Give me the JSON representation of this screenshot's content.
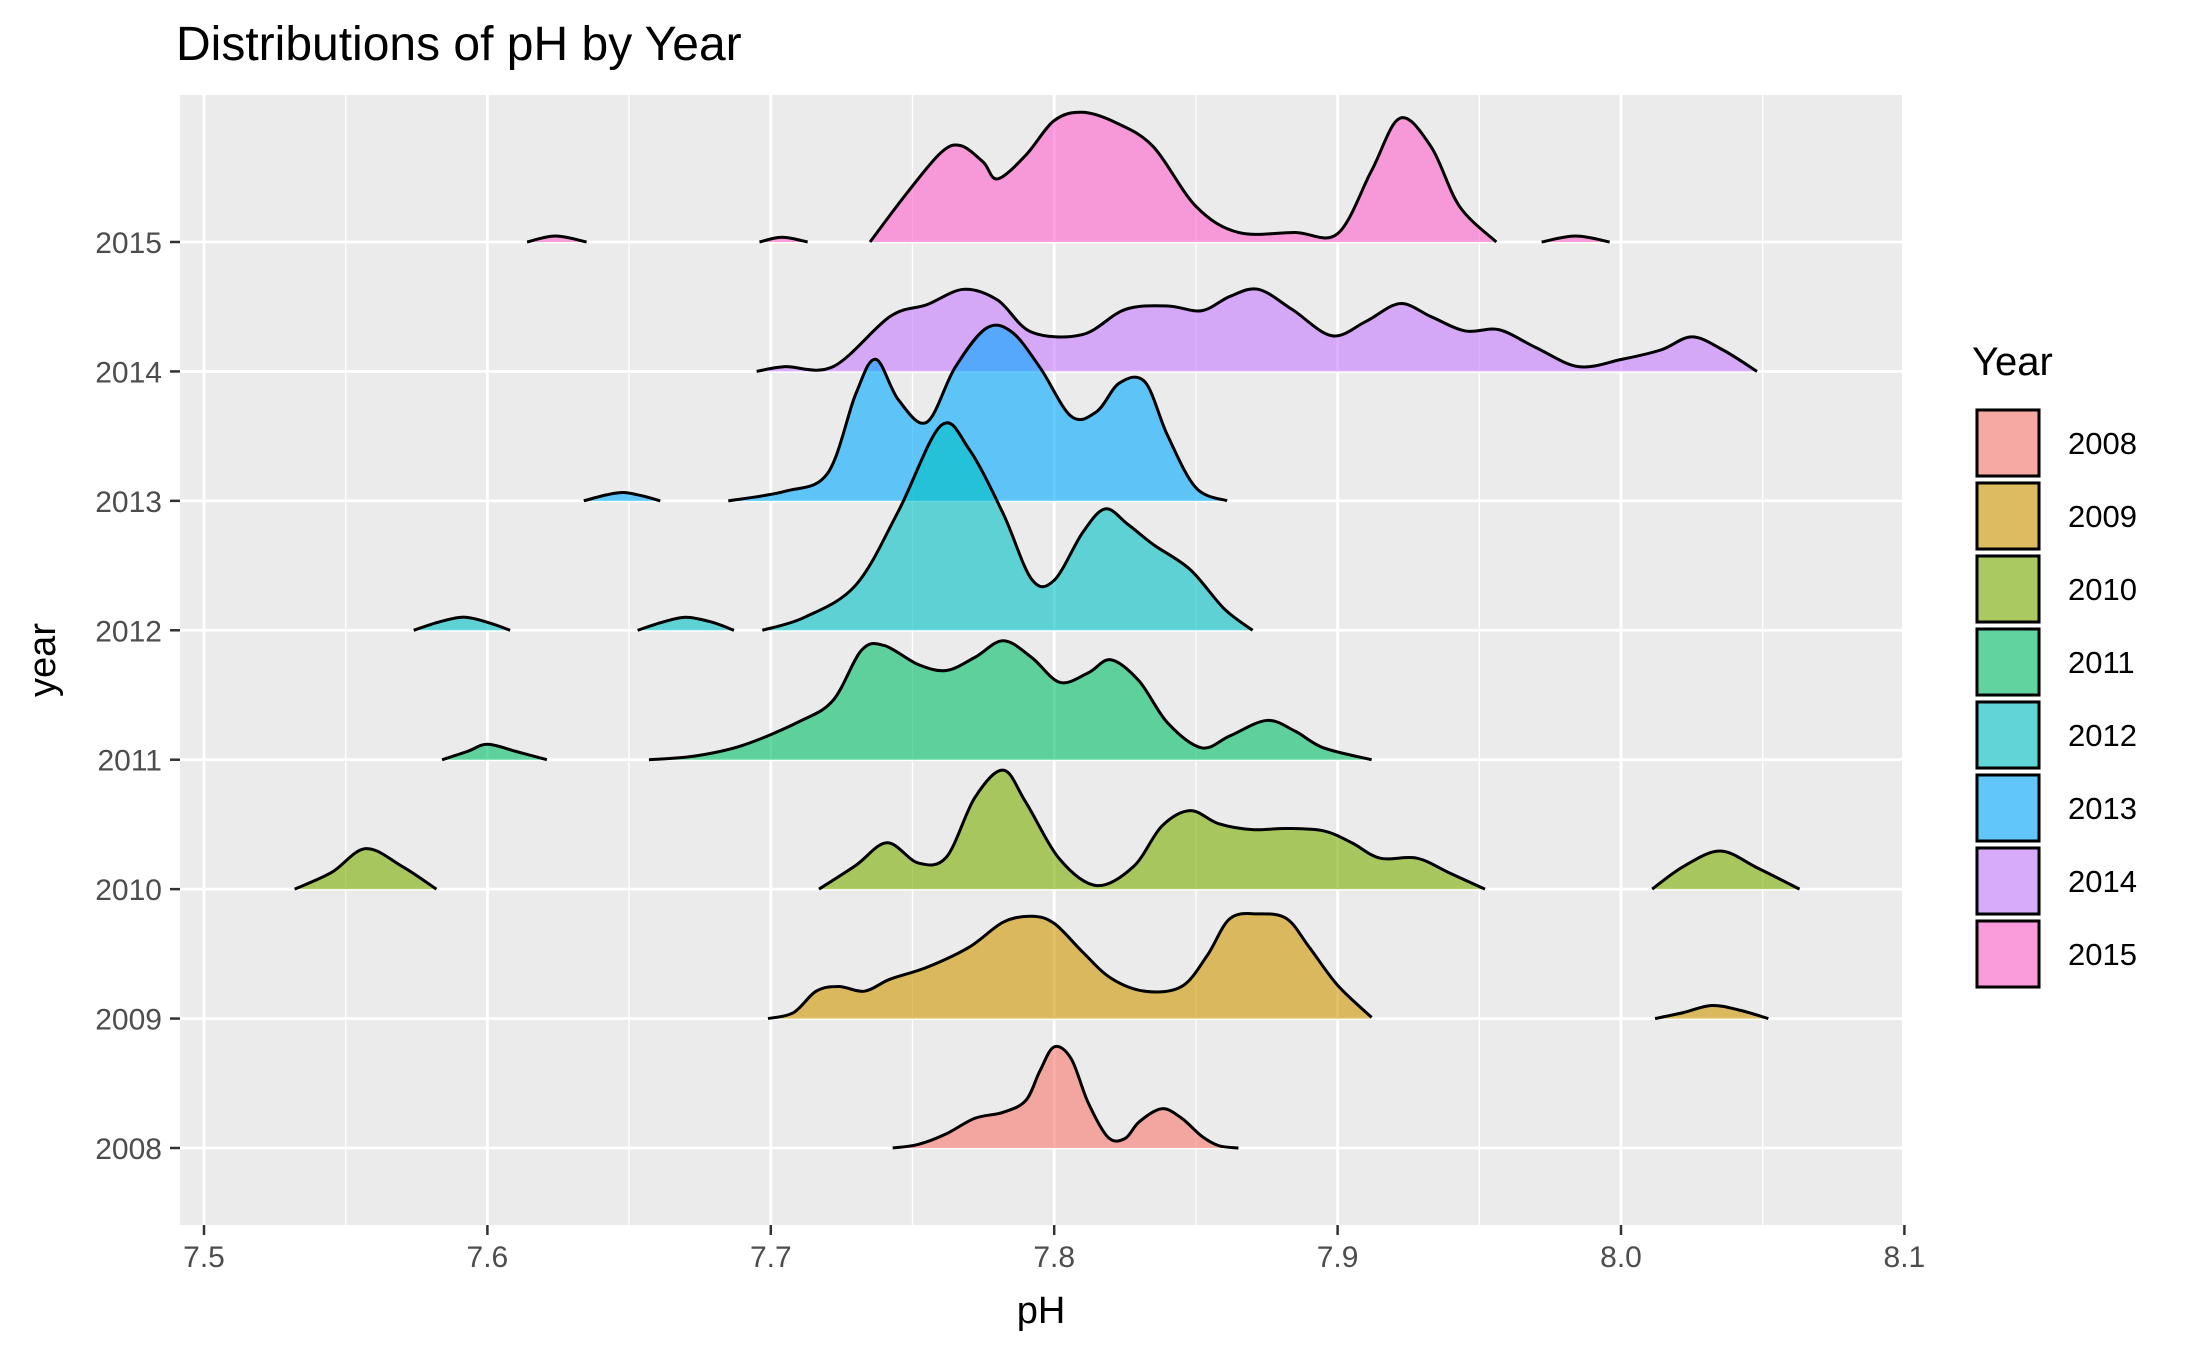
{
  "chart_data": {
    "type": "ridgeline",
    "title": "Distributions of pH by Year",
    "xlabel": "pH",
    "ylabel": "year",
    "xlim": [
      7.49,
      8.1
    ],
    "x_ticks": [
      "7.5",
      "7.6",
      "7.7",
      "7.8",
      "7.9",
      "8.0",
      "8.1"
    ],
    "y_categories": [
      "2008",
      "2009",
      "2010",
      "2011",
      "2012",
      "2013",
      "2014",
      "2015"
    ],
    "grid": true,
    "legend": {
      "title": "Year",
      "placement": "right",
      "entries": [
        "2008",
        "2009",
        "2010",
        "2011",
        "2012",
        "2013",
        "2014",
        "2015"
      ]
    },
    "colors": {
      "2008": "#F8766D",
      "2009": "#CD9600",
      "2010": "#7CAE00",
      "2011": "#00BE67",
      "2012": "#00BFC4",
      "2013": "#00A9FF",
      "2014": "#C77CFF",
      "2015": "#FF61CC"
    },
    "series": [
      {
        "name": "2008",
        "segments": [
          [
            [
              7.743,
              0
            ],
            [
              7.752,
              0.03
            ],
            [
              7.762,
              0.12
            ],
            [
              7.772,
              0.25
            ],
            [
              7.782,
              0.3
            ],
            [
              7.79,
              0.4
            ],
            [
              7.795,
              0.65
            ],
            [
              7.8,
              0.85
            ],
            [
              7.806,
              0.75
            ],
            [
              7.812,
              0.38
            ],
            [
              7.819,
              0.09
            ],
            [
              7.825,
              0.08
            ],
            [
              7.83,
              0.22
            ],
            [
              7.838,
              0.33
            ],
            [
              7.845,
              0.25
            ],
            [
              7.852,
              0.1
            ],
            [
              7.858,
              0.02
            ],
            [
              7.865,
              0
            ]
          ]
        ]
      },
      {
        "name": "2009",
        "segments": [
          [
            [
              7.699,
              0
            ],
            [
              7.708,
              0.05
            ],
            [
              7.716,
              0.23
            ],
            [
              7.724,
              0.27
            ],
            [
              7.733,
              0.23
            ],
            [
              7.742,
              0.33
            ],
            [
              7.755,
              0.43
            ],
            [
              7.77,
              0.6
            ],
            [
              7.782,
              0.81
            ],
            [
              7.792,
              0.86
            ],
            [
              7.8,
              0.8
            ],
            [
              7.81,
              0.56
            ],
            [
              7.82,
              0.34
            ],
            [
              7.832,
              0.23
            ],
            [
              7.845,
              0.27
            ],
            [
              7.854,
              0.53
            ],
            [
              7.862,
              0.84
            ],
            [
              7.872,
              0.88
            ],
            [
              7.882,
              0.84
            ],
            [
              7.89,
              0.6
            ],
            [
              7.9,
              0.28
            ],
            [
              7.912,
              0.01
            ]
          ],
          [
            [
              8.012,
              0
            ],
            [
              8.022,
              0.05
            ],
            [
              8.032,
              0.11
            ],
            [
              8.042,
              0.07
            ],
            [
              8.052,
              0
            ]
          ]
        ]
      },
      {
        "name": "2010",
        "segments": [
          [
            [
              7.532,
              0
            ],
            [
              7.545,
              0.14
            ],
            [
              7.557,
              0.34
            ],
            [
              7.57,
              0.19
            ],
            [
              7.582,
              0
            ]
          ],
          [
            [
              7.717,
              0
            ],
            [
              7.73,
              0.2
            ],
            [
              7.741,
              0.39
            ],
            [
              7.752,
              0.22
            ],
            [
              7.762,
              0.27
            ],
            [
              7.772,
              0.77
            ],
            [
              7.782,
              1.0
            ],
            [
              7.79,
              0.73
            ],
            [
              7.802,
              0.25
            ],
            [
              7.815,
              0.03
            ],
            [
              7.828,
              0.19
            ],
            [
              7.838,
              0.53
            ],
            [
              7.848,
              0.66
            ],
            [
              7.858,
              0.55
            ],
            [
              7.87,
              0.5
            ],
            [
              7.882,
              0.51
            ],
            [
              7.895,
              0.49
            ],
            [
              7.905,
              0.39
            ],
            [
              7.915,
              0.26
            ],
            [
              7.928,
              0.26
            ],
            [
              7.94,
              0.13
            ],
            [
              7.952,
              0
            ]
          ],
          [
            [
              8.011,
              0
            ],
            [
              8.022,
              0.19
            ],
            [
              8.035,
              0.32
            ],
            [
              8.048,
              0.18
            ],
            [
              8.063,
              0
            ]
          ]
        ]
      },
      {
        "name": "2011",
        "segments": [
          [
            [
              7.584,
              0
            ],
            [
              7.593,
              0.07
            ],
            [
              7.6,
              0.13
            ],
            [
              7.61,
              0.07
            ],
            [
              7.621,
              0
            ]
          ],
          [
            [
              7.657,
              0
            ],
            [
              7.673,
              0.03
            ],
            [
              7.69,
              0.12
            ],
            [
              7.71,
              0.32
            ],
            [
              7.722,
              0.5
            ],
            [
              7.732,
              0.92
            ],
            [
              7.74,
              0.96
            ],
            [
              7.752,
              0.8
            ],
            [
              7.762,
              0.75
            ],
            [
              7.772,
              0.86
            ],
            [
              7.782,
              1.0
            ],
            [
              7.792,
              0.86
            ],
            [
              7.802,
              0.65
            ],
            [
              7.812,
              0.73
            ],
            [
              7.82,
              0.84
            ],
            [
              7.83,
              0.66
            ],
            [
              7.84,
              0.31
            ],
            [
              7.852,
              0.1
            ],
            [
              7.862,
              0.2
            ],
            [
              7.875,
              0.33
            ],
            [
              7.885,
              0.24
            ],
            [
              7.895,
              0.1
            ],
            [
              7.912,
              0
            ]
          ]
        ]
      },
      {
        "name": "2012",
        "segments": [
          [
            [
              7.574,
              0
            ],
            [
              7.583,
              0.07
            ],
            [
              7.592,
              0.11
            ],
            [
              7.601,
              0.06
            ],
            [
              7.608,
              0
            ]
          ],
          [
            [
              7.653,
              0
            ],
            [
              7.662,
              0.07
            ],
            [
              7.67,
              0.11
            ],
            [
              7.679,
              0.07
            ],
            [
              7.687,
              0
            ]
          ],
          [
            [
              7.697,
              0
            ],
            [
              7.712,
              0.11
            ],
            [
              7.73,
              0.38
            ],
            [
              7.745,
              1.0
            ],
            [
              7.76,
              1.72
            ],
            [
              7.77,
              1.52
            ],
            [
              7.782,
              0.98
            ],
            [
              7.792,
              0.43
            ],
            [
              7.8,
              0.42
            ],
            [
              7.81,
              0.82
            ],
            [
              7.818,
              1.02
            ],
            [
              7.826,
              0.89
            ],
            [
              7.835,
              0.72
            ],
            [
              7.848,
              0.51
            ],
            [
              7.86,
              0.18
            ],
            [
              7.87,
              0
            ]
          ]
        ]
      },
      {
        "name": "2013",
        "segments": [
          [
            [
              7.634,
              0
            ],
            [
              7.642,
              0.05
            ],
            [
              7.648,
              0.07
            ],
            [
              7.655,
              0.04
            ],
            [
              7.661,
              0
            ]
          ],
          [
            [
              7.685,
              0
            ],
            [
              7.705,
              0.08
            ],
            [
              7.72,
              0.23
            ],
            [
              7.73,
              0.9
            ],
            [
              7.737,
              1.19
            ],
            [
              7.745,
              0.85
            ],
            [
              7.755,
              0.66
            ],
            [
              7.765,
              1.12
            ],
            [
              7.776,
              1.45
            ],
            [
              7.785,
              1.42
            ],
            [
              7.795,
              1.12
            ],
            [
              7.806,
              0.71
            ],
            [
              7.815,
              0.75
            ],
            [
              7.823,
              0.99
            ],
            [
              7.832,
              1.0
            ],
            [
              7.84,
              0.55
            ],
            [
              7.85,
              0.11
            ],
            [
              7.861,
              0
            ]
          ]
        ]
      },
      {
        "name": "2014",
        "segments": [
          [
            [
              7.695,
              0
            ],
            [
              7.705,
              0.04
            ],
            [
              7.722,
              0.04
            ],
            [
              7.742,
              0.46
            ],
            [
              7.755,
              0.56
            ],
            [
              7.768,
              0.69
            ],
            [
              7.78,
              0.6
            ],
            [
              7.792,
              0.33
            ],
            [
              7.81,
              0.31
            ],
            [
              7.825,
              0.52
            ],
            [
              7.84,
              0.55
            ],
            [
              7.852,
              0.51
            ],
            [
              7.862,
              0.63
            ],
            [
              7.872,
              0.69
            ],
            [
              7.884,
              0.52
            ],
            [
              7.898,
              0.3
            ],
            [
              7.91,
              0.42
            ],
            [
              7.922,
              0.57
            ],
            [
              7.933,
              0.46
            ],
            [
              7.945,
              0.34
            ],
            [
              7.957,
              0.35
            ],
            [
              7.97,
              0.2
            ],
            [
              7.985,
              0.04
            ],
            [
              8.0,
              0.1
            ],
            [
              8.014,
              0.18
            ],
            [
              8.025,
              0.29
            ],
            [
              8.036,
              0.18
            ],
            [
              8.048,
              0
            ]
          ]
        ]
      },
      {
        "name": "2015",
        "segments": [
          [
            [
              7.614,
              0
            ],
            [
              7.624,
              0.05
            ],
            [
              7.635,
              0
            ]
          ],
          [
            [
              7.696,
              0
            ],
            [
              7.704,
              0.04
            ],
            [
              7.713,
              0
            ]
          ],
          [
            [
              7.735,
              0
            ],
            [
              7.748,
              0.41
            ],
            [
              7.76,
              0.75
            ],
            [
              7.767,
              0.81
            ],
            [
              7.775,
              0.67
            ],
            [
              7.78,
              0.53
            ],
            [
              7.79,
              0.73
            ],
            [
              7.8,
              1.02
            ],
            [
              7.81,
              1.09
            ],
            [
              7.822,
              1.0
            ],
            [
              7.835,
              0.8
            ],
            [
              7.85,
              0.3
            ],
            [
              7.865,
              0.08
            ],
            [
              7.885,
              0.08
            ],
            [
              7.9,
              0.07
            ],
            [
              7.912,
              0.6
            ],
            [
              7.922,
              1.04
            ],
            [
              7.933,
              0.8
            ],
            [
              7.943,
              0.3
            ],
            [
              7.956,
              0
            ]
          ],
          [
            [
              7.972,
              0
            ],
            [
              7.984,
              0.05
            ],
            [
              7.996,
              0
            ]
          ]
        ]
      }
    ]
  }
}
